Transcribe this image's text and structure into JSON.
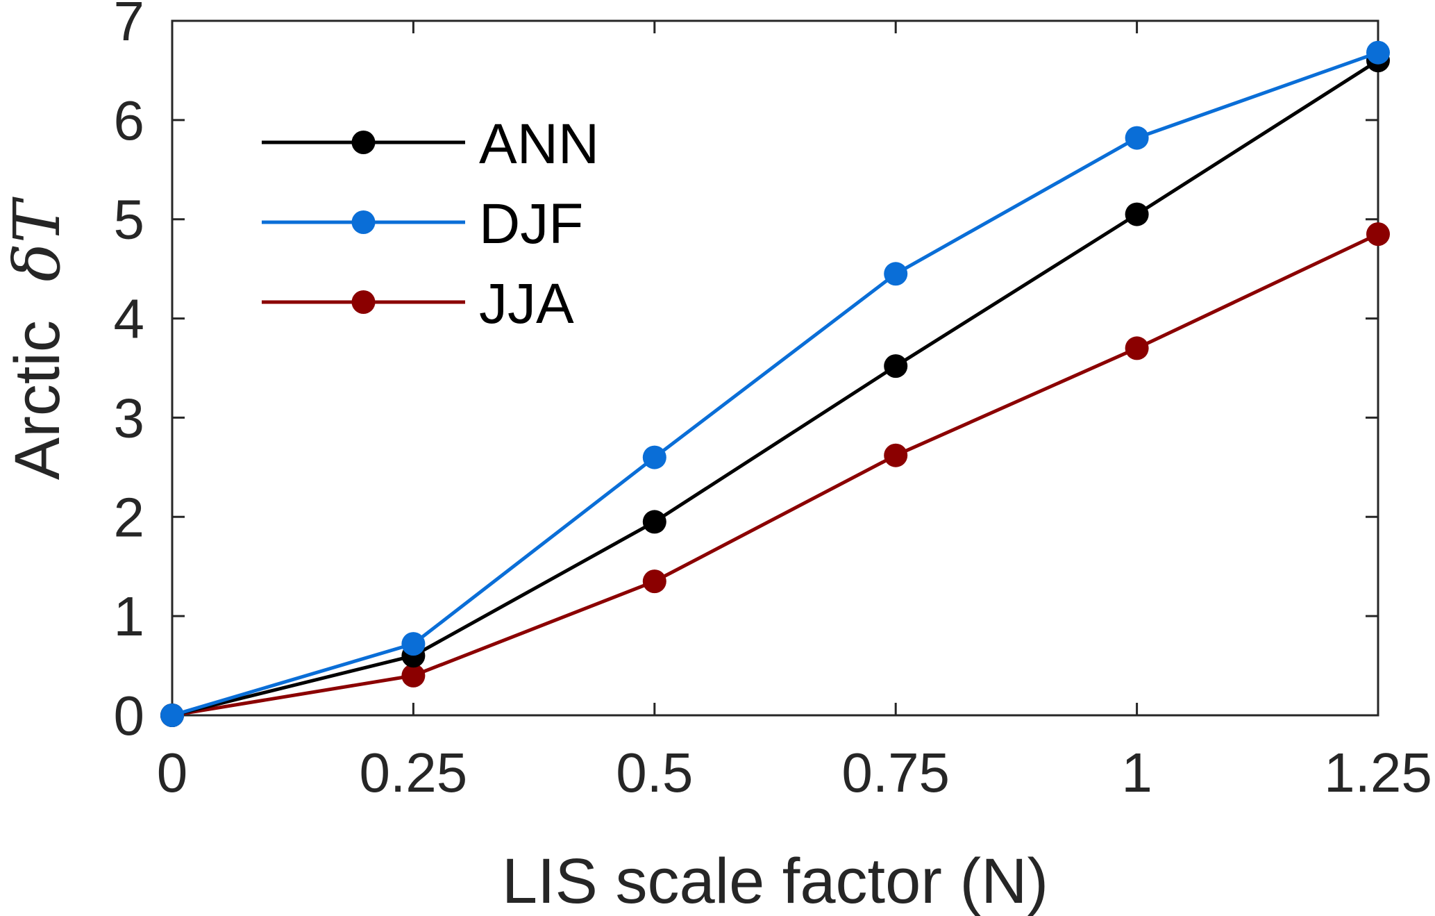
{
  "chart_data": {
    "type": "line",
    "x": [
      0,
      0.25,
      0.5,
      0.75,
      1,
      1.25
    ],
    "x_tick_labels": [
      "0",
      "0.25",
      "0.5",
      "0.75",
      "1",
      "1.25"
    ],
    "y_ticks": [
      0,
      1,
      2,
      3,
      4,
      5,
      6,
      7
    ],
    "y_tick_labels": [
      "0",
      "1",
      "2",
      "3",
      "4",
      "5",
      "6",
      "7"
    ],
    "xlim": [
      0,
      1.25
    ],
    "ylim": [
      0,
      7
    ],
    "xlabel": "LIS scale factor (N)",
    "ylabel_text": "Arctic",
    "ylabel_symbol": "δT",
    "grid": false,
    "legend_position": "top-left",
    "series": [
      {
        "name": "ANN",
        "color": "#000000",
        "values": [
          0,
          0.6,
          1.95,
          3.52,
          5.05,
          6.6
        ]
      },
      {
        "name": "DJF",
        "color": "#0a6ed7",
        "values": [
          0,
          0.72,
          2.6,
          4.45,
          5.82,
          6.68
        ]
      },
      {
        "name": "JJA",
        "color": "#8b0000",
        "values": [
          0,
          0.4,
          1.35,
          2.62,
          3.7,
          4.85
        ]
      }
    ]
  }
}
